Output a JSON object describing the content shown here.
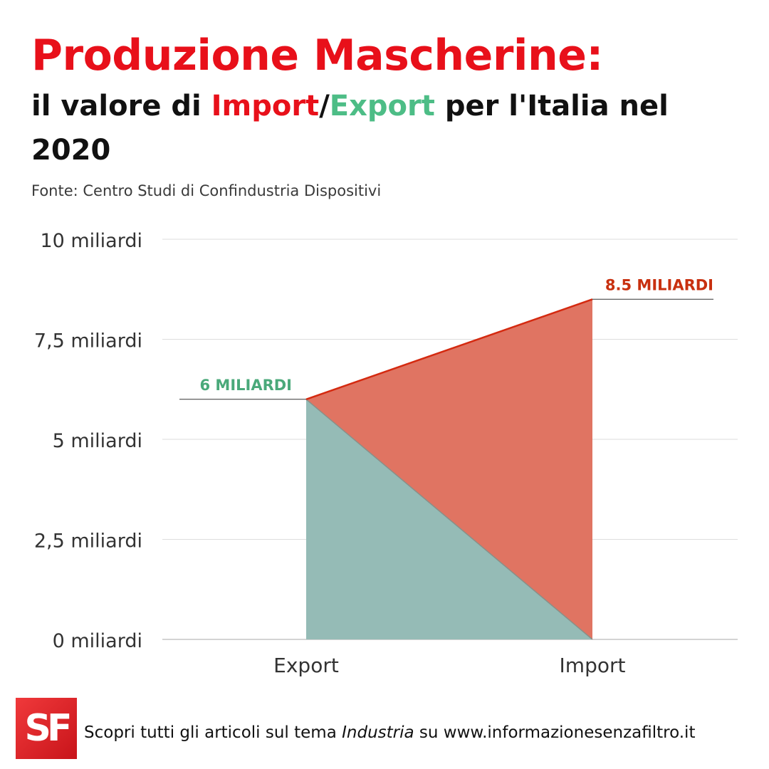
{
  "header": {
    "title": "Produzione Mascherine:",
    "subtitle_part1": "il valore di ",
    "subtitle_import": "Import",
    "subtitle_sep": "/",
    "subtitle_export": "Export",
    "subtitle_part2": " per l'Italia nel 2020",
    "source": "Fonte: Centro Studi di Confindustria Dispositivi"
  },
  "colors": {
    "title": "#e8101a",
    "import_text": "#e8101a",
    "export_text": "#4dbd86",
    "import_fill": "#e07462",
    "import_line": "#d42a10",
    "import_label": "#c8300f",
    "export_fill": "#95bbb6",
    "export_label": "#4aa97a",
    "grid": "#dddddd"
  },
  "chart_data": {
    "type": "area",
    "categories": [
      "Export",
      "Import"
    ],
    "series": [
      {
        "name": "Export",
        "values": [
          6,
          0
        ]
      },
      {
        "name": "Import",
        "values": [
          6,
          8.5
        ]
      }
    ],
    "y_ticks": [
      {
        "value": 0,
        "label": "0 miliardi"
      },
      {
        "value": 2.5,
        "label": "2,5 miliardi"
      },
      {
        "value": 5,
        "label": "5 miliardi"
      },
      {
        "value": 7.5,
        "label": "7,5 miliardi"
      },
      {
        "value": 10,
        "label": "10 miliardi"
      }
    ],
    "ylim": [
      0,
      10
    ],
    "grid": true,
    "annotations": [
      {
        "text": "6 MILIARDI",
        "category": "Export",
        "value": 6,
        "series": "Export"
      },
      {
        "text": "8.5 MILIARDI",
        "category": "Import",
        "value": 8.5,
        "series": "Import"
      }
    ]
  },
  "footer": {
    "logo_text": "SF",
    "text_before": "Scopri tutti gli articoli sul tema ",
    "text_topic": "Industria",
    "text_after": " su www.informazionesenzafiltro.it"
  }
}
